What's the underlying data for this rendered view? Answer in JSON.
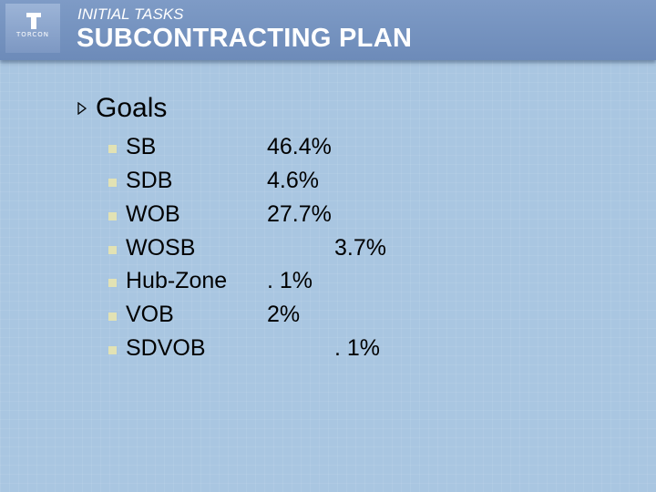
{
  "header": {
    "subtitle": "INITIAL TASKS",
    "title": "SUBCONTRACTING PLAN",
    "logo_text": "TORCON"
  },
  "goals": {
    "label": "Goals",
    "items": [
      {
        "label": "SB",
        "value": "46.4%"
      },
      {
        "label": "SDB",
        "value": "4.6%"
      },
      {
        "label": "WOB",
        "value": "27.7%"
      },
      {
        "label": "WOSB",
        "value": "3.7%"
      },
      {
        "label": "Hub-Zone",
        "value": ". 1%"
      },
      {
        "label": "VOB",
        "value": "2%"
      },
      {
        "label": "SDVOB",
        "value": ". 1%"
      }
    ]
  },
  "colors": {
    "background": "#a9c6e1",
    "header": "#7290bd",
    "bullet": "#e2e2b4",
    "text": "#000000"
  }
}
